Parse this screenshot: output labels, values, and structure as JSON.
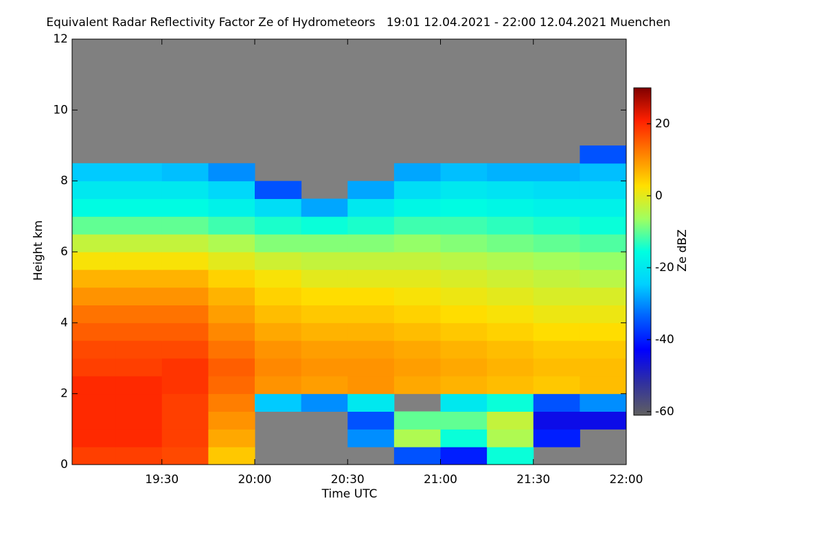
{
  "chart_data": {
    "type": "heatmap",
    "title": "Equivalent Radar Reflectivity Factor Ze of Hydrometeors   19:01 12.04.2021 - 22:00 12.04.2021 Muenchen",
    "x_label": "Time UTC",
    "y_label": "Height km",
    "colorbar_label": "Ze dBZ",
    "xlim": [
      19.0167,
      22
    ],
    "ylim": [
      0,
      12
    ],
    "xticks": [
      {
        "value": 19.5,
        "label": "19:30"
      },
      {
        "value": 20,
        "label": "20:00"
      },
      {
        "value": 20.5,
        "label": "20:30"
      },
      {
        "value": 21,
        "label": "21:00"
      },
      {
        "value": 21.5,
        "label": "21:30"
      },
      {
        "value": 22,
        "label": "22:00"
      }
    ],
    "yticks": [
      0,
      2,
      4,
      6,
      8,
      10,
      12
    ],
    "clim": [
      -61,
      30
    ],
    "cticks": [
      -60,
      -40,
      -20,
      0,
      20
    ],
    "colormap": [
      "#606060",
      "#3030a0",
      "#0000ff",
      "#0060ff",
      "#00d0ff",
      "#00ffe0",
      "#a0ff60",
      "#ffe000",
      "#ff8000",
      "#ff2000",
      "#800000"
    ],
    "background": "#808080",
    "x_edges": [
      19.0167,
      19.25,
      19.5,
      19.75,
      20,
      20.25,
      20.5,
      20.75,
      21,
      21.25,
      21.5,
      21.75,
      22
    ],
    "y_edges": [
      0,
      0.5,
      1,
      1.5,
      2,
      2.5,
      3,
      3.5,
      4,
      4.5,
      5,
      5.5,
      6,
      6.5,
      7,
      7.5,
      8,
      8.5,
      9
    ],
    "z": [
      [
        18,
        18,
        17,
        5,
        null,
        null,
        null,
        -35,
        -40,
        -15,
        null,
        null
      ],
      [
        20,
        20,
        18,
        8,
        null,
        null,
        -30,
        -5,
        -15,
        -5,
        -40,
        null
      ],
      [
        20,
        20,
        18,
        10,
        null,
        null,
        -35,
        -10,
        -10,
        -3,
        -45,
        -45
      ],
      [
        20,
        20,
        18,
        12,
        -25,
        -30,
        -20,
        null,
        -20,
        -15,
        -35,
        -30
      ],
      [
        20,
        20,
        19,
        14,
        10,
        9,
        10,
        8,
        7,
        6,
        5,
        6
      ],
      [
        18,
        18,
        19,
        15,
        11,
        10,
        10,
        9,
        8,
        7,
        6,
        6
      ],
      [
        17,
        17,
        17,
        13,
        10,
        9,
        9,
        8,
        7,
        6,
        5,
        5
      ],
      [
        15,
        15,
        15,
        11,
        8,
        7,
        7,
        6,
        5,
        4,
        3,
        3
      ],
      [
        13,
        13,
        13,
        9,
        6,
        5,
        5,
        4,
        3,
        2,
        1,
        1
      ],
      [
        10,
        10,
        10,
        7,
        4,
        3,
        3,
        2,
        1,
        0,
        -1,
        -1
      ],
      [
        7,
        7,
        7,
        4,
        2,
        0,
        0,
        0,
        -1,
        -2,
        -3,
        -4
      ],
      [
        2,
        2,
        2,
        0,
        -2,
        -3,
        -3,
        -3,
        -4,
        -5,
        -6,
        -7
      ],
      [
        -3,
        -3,
        -3,
        -5,
        -8,
        -8,
        -8,
        -7,
        -8,
        -9,
        -10,
        -11
      ],
      [
        -10,
        -10,
        -10,
        -12,
        -14,
        -15,
        -14,
        -12,
        -12,
        -13,
        -14,
        -15
      ],
      [
        -16,
        -16,
        -16,
        -18,
        -22,
        -28,
        -20,
        -17,
        -16,
        -17,
        -18,
        -18
      ],
      [
        -20,
        -20,
        -20,
        -23,
        -35,
        null,
        -28,
        -22,
        -20,
        -21,
        -22,
        -22
      ],
      [
        -25,
        -25,
        -26,
        -30,
        null,
        null,
        null,
        -28,
        -26,
        -27,
        -27,
        -26
      ],
      [
        null,
        null,
        null,
        null,
        null,
        null,
        null,
        null,
        null,
        null,
        null,
        -35
      ]
    ]
  }
}
